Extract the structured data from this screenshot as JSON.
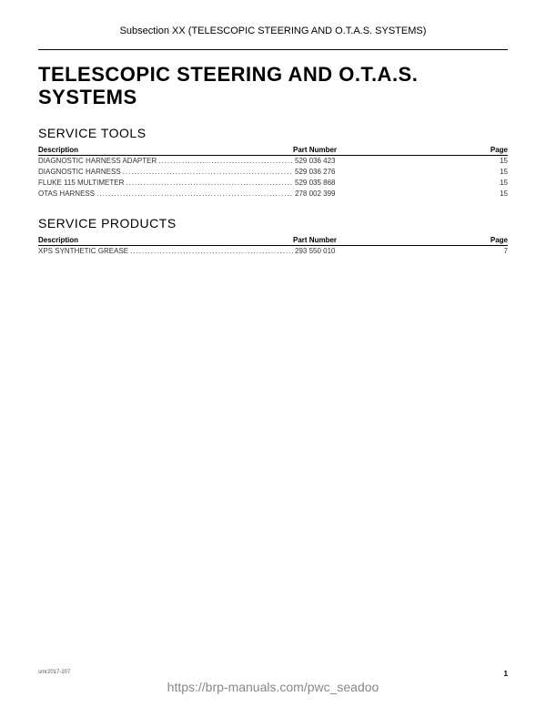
{
  "header": {
    "subsection": "Subsection XX (TELESCOPIC STEERING AND O.T.A.S. SYSTEMS)"
  },
  "title": "TELESCOPIC STEERING AND O.T.A.S. SYSTEMS",
  "sections": {
    "tools": {
      "heading": "SERVICE TOOLS",
      "col_desc": "Description",
      "col_part": "Part Number",
      "col_page": "Page",
      "rows": [
        {
          "desc": "DIAGNOSTIC HARNESS ADAPTER",
          "part": "529 036 423",
          "page": "15"
        },
        {
          "desc": "DIAGNOSTIC HARNESS",
          "part": "529 036 276",
          "page": "15"
        },
        {
          "desc": "FLUKE 115 MULTIMETER",
          "part": "529 035 868",
          "page": "15"
        },
        {
          "desc": "OTAS HARNESS",
          "part": "278 002 399",
          "page": "15"
        }
      ]
    },
    "products": {
      "heading": "SERVICE PRODUCTS",
      "col_desc": "Description",
      "col_part": "Part Number",
      "col_page": "Page",
      "rows": [
        {
          "desc": "XPS SYNTHETIC GREASE",
          "part": "293 550 010",
          "page": "7"
        }
      ]
    }
  },
  "footer": {
    "doc_id": "smr2017-207",
    "page_number": "1"
  },
  "watermark": "https://brp-manuals.com/pwc_seadoo"
}
